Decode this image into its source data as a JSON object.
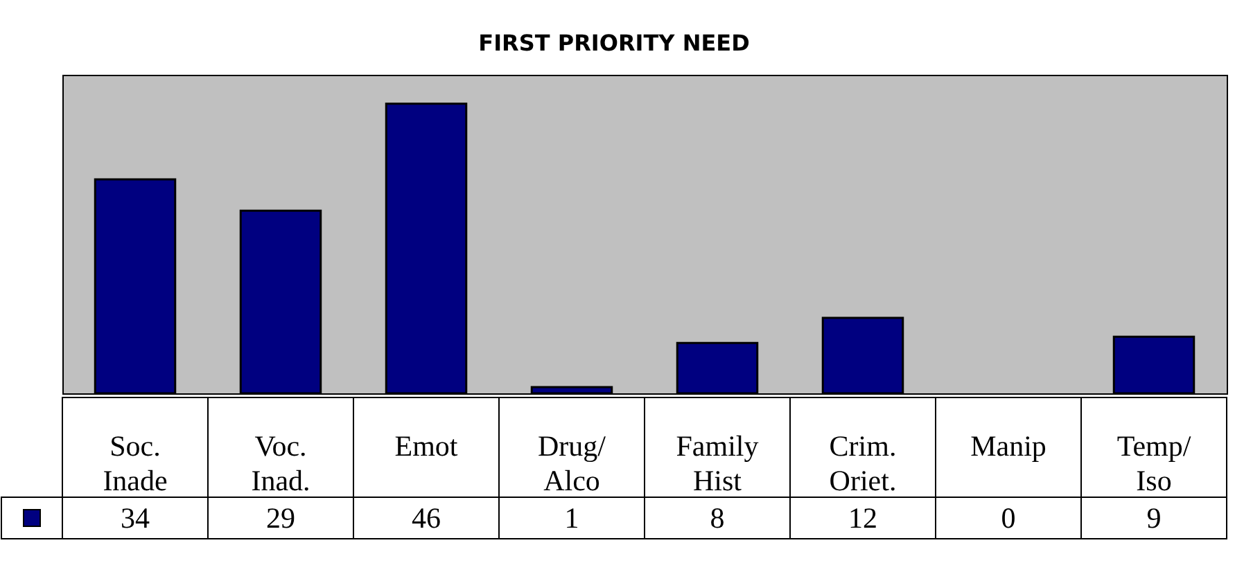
{
  "chart_data": {
    "type": "bar",
    "title": "FIRST PRIORITY NEED",
    "categories": [
      "Soc. Inade",
      "Voc. Inad.",
      "Emot",
      "Drug/ Alco",
      "Family Hist",
      "Crim. Oriet.",
      "Manip",
      "Temp/ Iso"
    ],
    "series": [
      {
        "color": "#000080",
        "values": [
          34,
          29,
          46,
          1,
          8,
          12,
          0,
          9
        ]
      }
    ],
    "data_labels": true
  }
}
